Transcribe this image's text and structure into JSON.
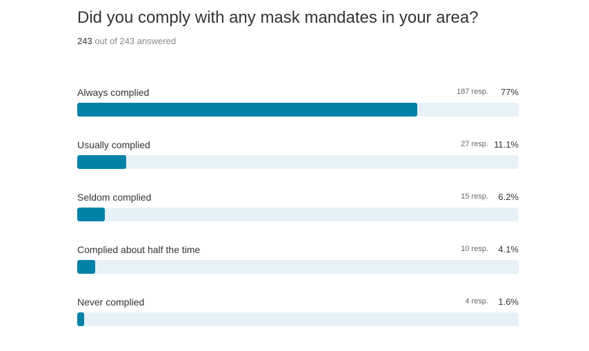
{
  "question": {
    "title": "Did you comply with any mask mandates in your area?",
    "answered_count": "243",
    "answered_rest": "out of 243 answered"
  },
  "colors": {
    "bar_fill": "#0081a8",
    "bar_track": "#e6f2f8"
  },
  "chart_data": {
    "type": "bar",
    "orientation": "horizontal",
    "title": "Did you comply with any mask mandates in your area?",
    "categories": [
      "Always complied",
      "Usually complied",
      "Seldom complied",
      "Complied about half the time",
      "Never complied"
    ],
    "values": [
      77,
      11.1,
      6.2,
      4.1,
      1.6
    ],
    "responses": [
      187,
      27,
      15,
      10,
      4
    ],
    "rows": [
      {
        "label": "Always complied",
        "resp": "187 resp.",
        "pct": "77%",
        "value": 77
      },
      {
        "label": "Usually complied",
        "resp": "27 resp.",
        "pct": "11.1%",
        "value": 11.1
      },
      {
        "label": "Seldom complied",
        "resp": "15 resp.",
        "pct": "6.2%",
        "value": 6.2
      },
      {
        "label": "Complied about half the time",
        "resp": "10 resp.",
        "pct": "4.1%",
        "value": 4.1
      },
      {
        "label": "Never complied",
        "resp": "4 resp.",
        "pct": "1.6%",
        "value": 1.6
      }
    ],
    "xlim": [
      0,
      100
    ]
  }
}
